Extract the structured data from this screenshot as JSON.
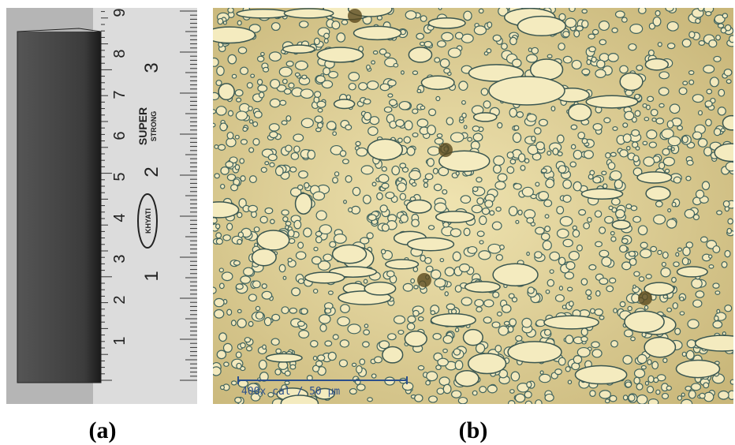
{
  "panels": [
    {
      "label": "(a)",
      "ruler": {
        "cm_labels": [
          "1",
          "2",
          "3",
          "4",
          "5",
          "6",
          "7",
          "8",
          "9"
        ],
        "inch_labels": [
          "1",
          "2",
          "3"
        ],
        "brand": "SUPER",
        "brand_sub": "STRONG",
        "maker": "KHYATI"
      }
    },
    {
      "label": "(b)",
      "scale_bar": "400x cal / 50 µm"
    }
  ]
}
